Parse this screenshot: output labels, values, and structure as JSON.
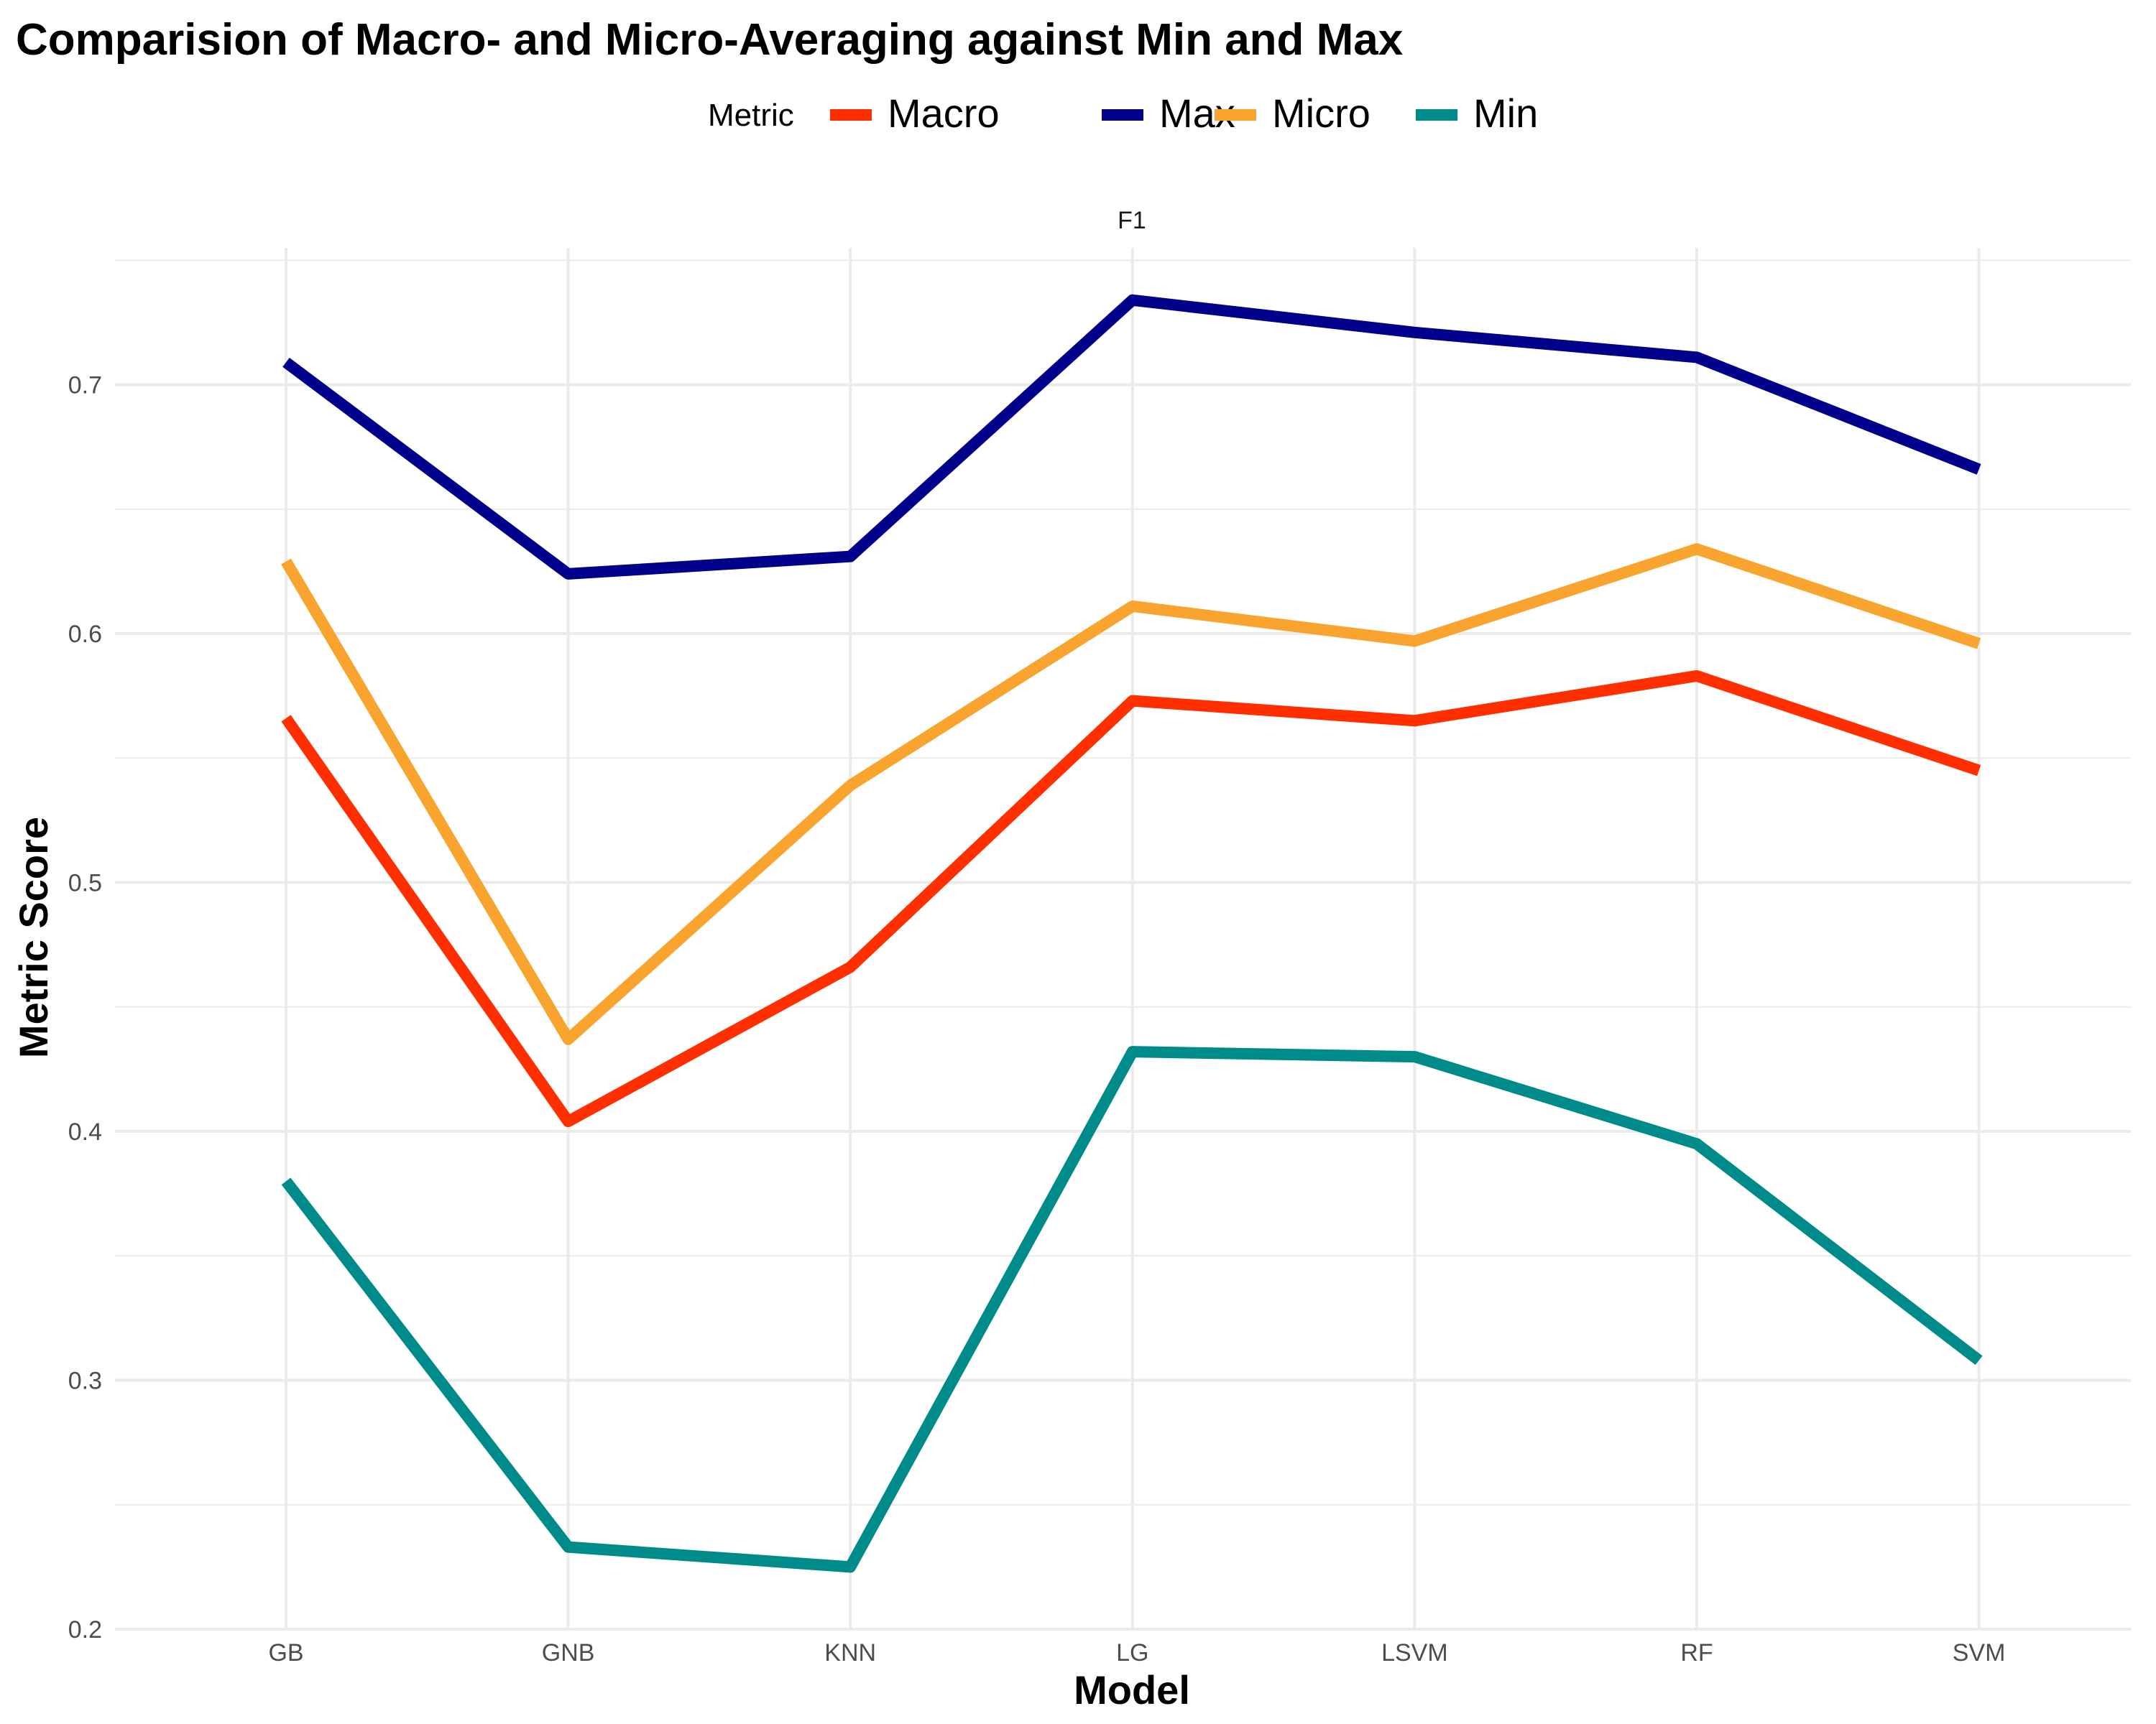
{
  "chart_data": {
    "type": "line",
    "title": "Comparision of Macro- and Micro-Averaging against Min and Max",
    "facet_label": "F1",
    "xlabel": "Model",
    "ylabel": "Metric Score",
    "legend_title": "Metric",
    "legend_position": "top",
    "grid": true,
    "categories": [
      "GB",
      "GNB",
      "KNN",
      "LG",
      "LSVM",
      "RF",
      "SVM"
    ],
    "ylim": [
      0.2,
      0.755
    ],
    "yticks": [
      "0.2",
      "0.3",
      "0.4",
      "0.5",
      "0.6",
      "0.7"
    ],
    "series": [
      {
        "name": "Macro",
        "color": "#ff2f00",
        "values": [
          0.566,
          0.404,
          0.466,
          0.573,
          0.565,
          0.583,
          0.545
        ]
      },
      {
        "name": "Max",
        "color": "#00008b",
        "values": [
          0.709,
          0.624,
          0.631,
          0.734,
          0.721,
          0.711,
          0.666
        ]
      },
      {
        "name": "Micro",
        "color": "#f9a42f",
        "values": [
          0.629,
          0.437,
          0.539,
          0.611,
          0.597,
          0.634,
          0.596
        ]
      },
      {
        "name": "Min",
        "color": "#008b8b",
        "values": [
          0.38,
          0.233,
          0.225,
          0.432,
          0.43,
          0.395,
          0.308
        ]
      }
    ]
  }
}
